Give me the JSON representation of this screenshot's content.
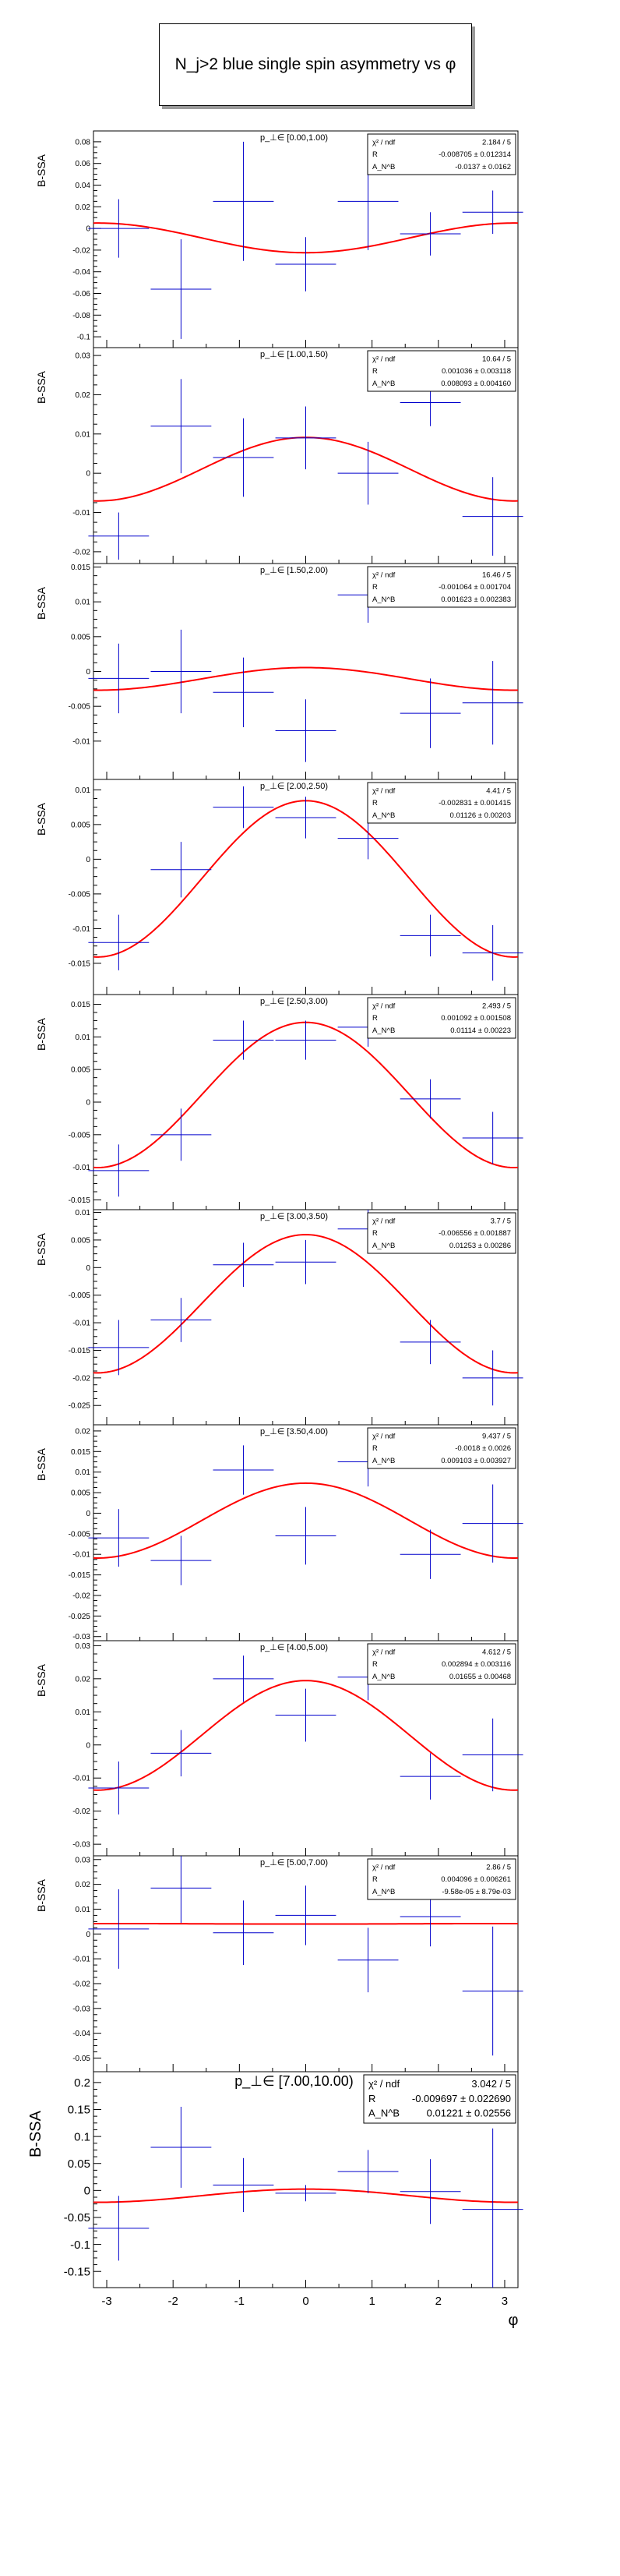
{
  "title": "N_j>2 blue single spin asymmetry vs φ",
  "colors": {
    "fit": "#ff0000",
    "data": "#0000cc",
    "axis": "#000000",
    "frame": "#000000"
  },
  "chart_data": [
    {
      "type": "scatter",
      "title": "p_⊥∈ [0.00,1.00)",
      "ylabel": "B-SSA",
      "xlabel": "φ",
      "xlim": [
        -3.2,
        3.2
      ],
      "ylim": [
        -0.11,
        0.09
      ],
      "yticks": [
        0.08,
        0.06,
        0.04,
        0.02,
        0,
        -0.02,
        -0.04,
        -0.06,
        -0.08,
        -0.1
      ],
      "ytick_labels": [
        "0.08",
        "0.06",
        "0.04",
        "0.02",
        "0",
        "-0.02",
        "-0.04",
        "-0.06",
        "-0.08",
        "-0.1"
      ],
      "stats": [
        {
          "label": "χ² / ndf",
          "value": "2.184 / 5"
        },
        {
          "label": "R",
          "value": "-0.008705 ± 0.012314"
        },
        {
          "label": "A_N^B",
          "value": "-0.0137 ± 0.0162"
        }
      ],
      "fit": {
        "R": -0.008705,
        "A": -0.0137
      },
      "points": [
        {
          "x": -2.82,
          "y": 0.0,
          "err": 0.027
        },
        {
          "x": -1.88,
          "y": -0.056,
          "err": 0.046
        },
        {
          "x": -0.94,
          "y": 0.025,
          "err": 0.055
        },
        {
          "x": 0.0,
          "y": -0.033,
          "err": 0.025
        },
        {
          "x": 0.94,
          "y": 0.025,
          "err": 0.045
        },
        {
          "x": 1.88,
          "y": -0.005,
          "err": 0.02
        },
        {
          "x": 2.82,
          "y": 0.015,
          "err": 0.02
        }
      ]
    },
    {
      "type": "scatter",
      "title": "p_⊥∈ [1.00,1.50)",
      "ylabel": "B-SSA",
      "xlabel": "φ",
      "xlim": [
        -3.2,
        3.2
      ],
      "ylim": [
        -0.023,
        0.032
      ],
      "yticks": [
        0.03,
        0.02,
        0.01,
        0,
        -0.01,
        -0.02
      ],
      "ytick_labels": [
        "0.03",
        "0.02",
        "0.01",
        "0",
        "-0.01",
        "-0.02"
      ],
      "stats": [
        {
          "label": "χ² / ndf",
          "value": "10.64 / 5"
        },
        {
          "label": "R",
          "value": "0.001036 ± 0.003118"
        },
        {
          "label": "A_N^B",
          "value": "0.008093 ± 0.004160"
        }
      ],
      "fit": {
        "R": 0.001036,
        "A": 0.008093
      },
      "points": [
        {
          "x": -2.82,
          "y": -0.016,
          "err": 0.006
        },
        {
          "x": -1.88,
          "y": 0.012,
          "err": 0.012
        },
        {
          "x": -0.94,
          "y": 0.004,
          "err": 0.01
        },
        {
          "x": 0.0,
          "y": 0.009,
          "err": 0.008
        },
        {
          "x": 0.94,
          "y": 0.0,
          "err": 0.008
        },
        {
          "x": 1.88,
          "y": 0.018,
          "err": 0.006
        },
        {
          "x": 2.82,
          "y": -0.011,
          "err": 0.01
        }
      ]
    },
    {
      "type": "scatter",
      "title": "p_⊥∈ [1.50,2.00)",
      "ylabel": "B-SSA",
      "xlabel": "φ",
      "xlim": [
        -3.2,
        3.2
      ],
      "ylim": [
        -0.0155,
        0.0155
      ],
      "yticks": [
        0.015,
        0.01,
        0.005,
        0,
        -0.005,
        -0.01
      ],
      "ytick_labels": [
        "0.015",
        "0.01",
        "0.005",
        "0",
        "-0.005",
        "-0.01"
      ],
      "stats": [
        {
          "label": "χ² / ndf",
          "value": "16.46 / 5"
        },
        {
          "label": "R",
          "value": "-0.001064 ± 0.001704"
        },
        {
          "label": "A_N^B",
          "value": "0.001623 ± 0.002383"
        }
      ],
      "fit": {
        "R": -0.001064,
        "A": 0.001623
      },
      "points": [
        {
          "x": -2.82,
          "y": -0.001,
          "err": 0.005
        },
        {
          "x": -1.88,
          "y": 0.0,
          "err": 0.006
        },
        {
          "x": -0.94,
          "y": -0.003,
          "err": 0.005
        },
        {
          "x": 0.0,
          "y": -0.0085,
          "err": 0.0045
        },
        {
          "x": 0.94,
          "y": 0.011,
          "err": 0.004
        },
        {
          "x": 1.88,
          "y": -0.006,
          "err": 0.005
        },
        {
          "x": 2.82,
          "y": -0.0045,
          "err": 0.006
        }
      ]
    },
    {
      "type": "scatter",
      "title": "p_⊥∈ [2.00,2.50)",
      "ylabel": "B-SSA",
      "xlabel": "φ",
      "xlim": [
        -3.2,
        3.2
      ],
      "ylim": [
        -0.0195,
        0.0115
      ],
      "yticks": [
        0.01,
        0.005,
        0,
        -0.005,
        -0.01,
        -0.015
      ],
      "ytick_labels": [
        "0.01",
        "0.005",
        "0",
        "-0.005",
        "-0.01",
        "-0.015"
      ],
      "stats": [
        {
          "label": "χ² / ndf",
          "value": "4.41 / 5"
        },
        {
          "label": "R",
          "value": "-0.002831 ± 0.001415"
        },
        {
          "label": "A_N^B",
          "value": "0.01126 ± 0.00203"
        }
      ],
      "fit": {
        "R": -0.002831,
        "A": 0.01126
      },
      "points": [
        {
          "x": -2.82,
          "y": -0.012,
          "err": 0.004
        },
        {
          "x": -1.88,
          "y": -0.0015,
          "err": 0.004
        },
        {
          "x": -0.94,
          "y": 0.0075,
          "err": 0.003
        },
        {
          "x": 0.0,
          "y": 0.006,
          "err": 0.003
        },
        {
          "x": 0.94,
          "y": 0.003,
          "err": 0.003
        },
        {
          "x": 1.88,
          "y": -0.011,
          "err": 0.003
        },
        {
          "x": 2.82,
          "y": -0.0135,
          "err": 0.004
        }
      ]
    },
    {
      "type": "scatter",
      "title": "p_⊥∈ [2.50,3.00)",
      "ylabel": "B-SSA",
      "xlabel": "φ",
      "xlim": [
        -3.2,
        3.2
      ],
      "ylim": [
        -0.0165,
        0.0165
      ],
      "yticks": [
        0.015,
        0.01,
        0.005,
        0,
        -0.005,
        -0.01,
        -0.015
      ],
      "ytick_labels": [
        "0.015",
        "0.01",
        "0.005",
        "0",
        "-0.005",
        "-0.01",
        "-0.015"
      ],
      "stats": [
        {
          "label": "χ² / ndf",
          "value": "2.493 / 5"
        },
        {
          "label": "R",
          "value": "0.001092 ± 0.001508"
        },
        {
          "label": "A_N^B",
          "value": "0.01114 ± 0.00223"
        }
      ],
      "fit": {
        "R": 0.001092,
        "A": 0.01114
      },
      "points": [
        {
          "x": -2.82,
          "y": -0.0105,
          "err": 0.004
        },
        {
          "x": -1.88,
          "y": -0.005,
          "err": 0.004
        },
        {
          "x": -0.94,
          "y": 0.0095,
          "err": 0.003
        },
        {
          "x": 0.0,
          "y": 0.0095,
          "err": 0.003
        },
        {
          "x": 0.94,
          "y": 0.0115,
          "err": 0.003
        },
        {
          "x": 1.88,
          "y": 0.0005,
          "err": 0.003
        },
        {
          "x": 2.82,
          "y": -0.0055,
          "err": 0.004
        }
      ]
    },
    {
      "type": "scatter",
      "title": "p_⊥∈ [3.00,3.50)",
      "ylabel": "B-SSA",
      "xlabel": "φ",
      "xlim": [
        -3.2,
        3.2
      ],
      "ylim": [
        -0.0285,
        0.0105
      ],
      "yticks": [
        0.01,
        0.005,
        0,
        -0.005,
        -0.01,
        -0.015,
        -0.02,
        -0.025
      ],
      "ytick_labels": [
        "0.01",
        "0.005",
        "0",
        "-0.005",
        "-0.01",
        "-0.015",
        "-0.02",
        "-0.025"
      ],
      "stats": [
        {
          "label": "χ² / ndf",
          "value": "3.7 / 5"
        },
        {
          "label": "R",
          "value": "-0.006556 ± 0.001887"
        },
        {
          "label": "A_N^B",
          "value": "0.01253 ± 0.00286"
        }
      ],
      "fit": {
        "R": -0.006556,
        "A": 0.01253
      },
      "points": [
        {
          "x": -2.82,
          "y": -0.0145,
          "err": 0.005
        },
        {
          "x": -1.88,
          "y": -0.0095,
          "err": 0.004
        },
        {
          "x": -0.94,
          "y": 0.0005,
          "err": 0.004
        },
        {
          "x": 0.0,
          "y": 0.001,
          "err": 0.004
        },
        {
          "x": 0.94,
          "y": 0.007,
          "err": 0.004
        },
        {
          "x": 1.88,
          "y": -0.0135,
          "err": 0.004
        },
        {
          "x": 2.82,
          "y": -0.02,
          "err": 0.005
        }
      ]
    },
    {
      "type": "scatter",
      "title": "p_⊥∈ [3.50,4.00)",
      "ylabel": "B-SSA",
      "xlabel": "φ",
      "xlim": [
        -3.2,
        3.2
      ],
      "ylim": [
        -0.031,
        0.0215
      ],
      "yticks": [
        0.02,
        0.015,
        0.01,
        0.005,
        0,
        -0.005,
        -0.01,
        -0.015,
        -0.02,
        -0.025,
        -0.03
      ],
      "ytick_labels": [
        "0.02",
        "0.015",
        "0.01",
        "0.005",
        "0",
        "-0.005",
        "-0.01",
        "-0.015",
        "-0.02",
        "-0.025",
        "-0.03"
      ],
      "stats": [
        {
          "label": "χ² / ndf",
          "value": "9.437 / 5"
        },
        {
          "label": "R",
          "value": "-0.0018 ± 0.0026"
        },
        {
          "label": "A_N^B",
          "value": "0.009103 ± 0.003927"
        }
      ],
      "fit": {
        "R": -0.0018,
        "A": 0.009103
      },
      "points": [
        {
          "x": -2.82,
          "y": -0.006,
          "err": 0.007
        },
        {
          "x": -1.88,
          "y": -0.0115,
          "err": 0.006
        },
        {
          "x": -0.94,
          "y": 0.0105,
          "err": 0.006
        },
        {
          "x": 0.0,
          "y": -0.0055,
          "err": 0.007
        },
        {
          "x": 0.94,
          "y": 0.0125,
          "err": 0.006
        },
        {
          "x": 1.88,
          "y": -0.01,
          "err": 0.006
        },
        {
          "x": 2.82,
          "y": -0.0025,
          "err": 0.0095
        }
      ]
    },
    {
      "type": "scatter",
      "title": "p_⊥∈ [4.00,5.00)",
      "ylabel": "B-SSA",
      "xlabel": "φ",
      "xlim": [
        -3.2,
        3.2
      ],
      "ylim": [
        -0.0335,
        0.0315
      ],
      "yticks": [
        0.03,
        0.02,
        0.01,
        0,
        -0.01,
        -0.02,
        -0.03
      ],
      "ytick_labels": [
        "0.03",
        "0.02",
        "0.01",
        "0",
        "-0.01",
        "-0.02",
        "-0.03"
      ],
      "stats": [
        {
          "label": "χ² / ndf",
          "value": "4.612 / 5"
        },
        {
          "label": "R",
          "value": "0.002894 ± 0.003116"
        },
        {
          "label": "A_N^B",
          "value": "0.01655 ± 0.00468"
        }
      ],
      "fit": {
        "R": 0.002894,
        "A": 0.01655
      },
      "points": [
        {
          "x": -2.82,
          "y": -0.013,
          "err": 0.008
        },
        {
          "x": -1.88,
          "y": -0.0025,
          "err": 0.007
        },
        {
          "x": -0.94,
          "y": 0.02,
          "err": 0.007
        },
        {
          "x": 0.0,
          "y": 0.009,
          "err": 0.008
        },
        {
          "x": 0.94,
          "y": 0.0205,
          "err": 0.007
        },
        {
          "x": 1.88,
          "y": -0.0095,
          "err": 0.007
        },
        {
          "x": 2.82,
          "y": -0.003,
          "err": 0.011
        }
      ]
    },
    {
      "type": "scatter",
      "title": "p_⊥∈ [5.00,7.00)",
      "ylabel": "B-SSA",
      "xlabel": "φ",
      "xlim": [
        -3.2,
        3.2
      ],
      "ylim": [
        -0.0555,
        0.0315
      ],
      "yticks": [
        0.03,
        0.02,
        0.01,
        0,
        -0.01,
        -0.02,
        -0.03,
        -0.04,
        -0.05
      ],
      "ytick_labels": [
        "0.03",
        "0.02",
        "0.01",
        "0",
        "-0.01",
        "-0.02",
        "-0.03",
        "-0.04",
        "-0.05"
      ],
      "stats": [
        {
          "label": "χ² / ndf",
          "value": "2.86 / 5"
        },
        {
          "label": "R",
          "value": "0.004096 ± 0.006261"
        },
        {
          "label": "A_N^B",
          "value": "-9.58e-05 ± 8.79e-03"
        }
      ],
      "fit": {
        "R": 0.004096,
        "A": -9.58e-05
      },
      "points": [
        {
          "x": -2.82,
          "y": 0.002,
          "err": 0.016
        },
        {
          "x": -1.88,
          "y": 0.0185,
          "err": 0.014
        },
        {
          "x": -0.94,
          "y": 0.0005,
          "err": 0.013
        },
        {
          "x": 0.0,
          "y": 0.0075,
          "err": 0.012
        },
        {
          "x": 0.94,
          "y": -0.0105,
          "err": 0.013
        },
        {
          "x": 1.88,
          "y": 0.007,
          "err": 0.012
        },
        {
          "x": 2.82,
          "y": -0.023,
          "err": 0.026
        }
      ]
    },
    {
      "type": "scatter",
      "title": "p_⊥∈ [7.00,10.00)",
      "ylabel": "B-SSA",
      "xlabel": "φ",
      "xlim": [
        -3.2,
        3.2
      ],
      "ylim": [
        -0.18,
        0.22
      ],
      "yticks": [
        0.2,
        0.15,
        0.1,
        0.05,
        0,
        -0.05,
        -0.1,
        -0.15
      ],
      "ytick_labels": [
        "0.2",
        "0.15",
        "0.1",
        "0.05",
        "0",
        "-0.05",
        "-0.1",
        "-0.15"
      ],
      "xticks": [
        -3,
        -2,
        -1,
        0,
        1,
        2,
        3
      ],
      "xtick_labels": [
        "-3",
        "-2",
        "-1",
        "0",
        "1",
        "2",
        "3"
      ],
      "stats": [
        {
          "label": "χ² / ndf",
          "value": "3.042 / 5"
        },
        {
          "label": "R",
          "value": "-0.009697 ± 0.022690"
        },
        {
          "label": "A_N^B",
          "value": "0.01221 ± 0.02556"
        }
      ],
      "fit": {
        "R": -0.009697,
        "A": 0.01221
      },
      "points": [
        {
          "x": -2.82,
          "y": -0.07,
          "err": 0.06
        },
        {
          "x": -1.88,
          "y": 0.08,
          "err": 0.075
        },
        {
          "x": -0.94,
          "y": 0.01,
          "err": 0.05
        },
        {
          "x": 0.0,
          "y": -0.005,
          "err": 0.015
        },
        {
          "x": 0.94,
          "y": 0.035,
          "err": 0.04
        },
        {
          "x": 1.88,
          "y": -0.002,
          "err": 0.06
        },
        {
          "x": 2.82,
          "y": -0.035,
          "err": 0.15
        }
      ]
    }
  ]
}
